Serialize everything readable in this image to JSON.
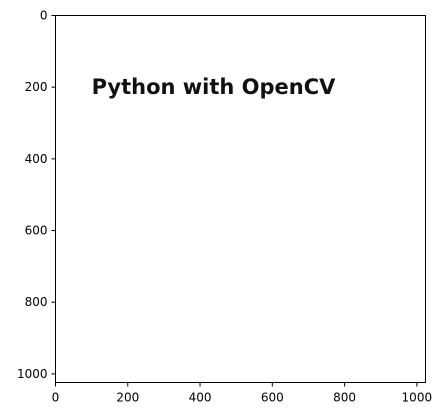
{
  "chart_data": {
    "type": "image",
    "title": "",
    "xlabel": "",
    "ylabel": "",
    "xlim": [
      0,
      1024
    ],
    "ylim": [
      1024,
      0
    ],
    "xticks": [
      0,
      200,
      400,
      600,
      800,
      1000
    ],
    "yticks": [
      0,
      200,
      400,
      600,
      800,
      1000
    ],
    "grid": false,
    "image": {
      "background_color": "#ffffff",
      "text": "Python with OpenCV",
      "text_color": "#111111",
      "text_baseline_x": 100,
      "text_baseline_y": 200
    }
  }
}
